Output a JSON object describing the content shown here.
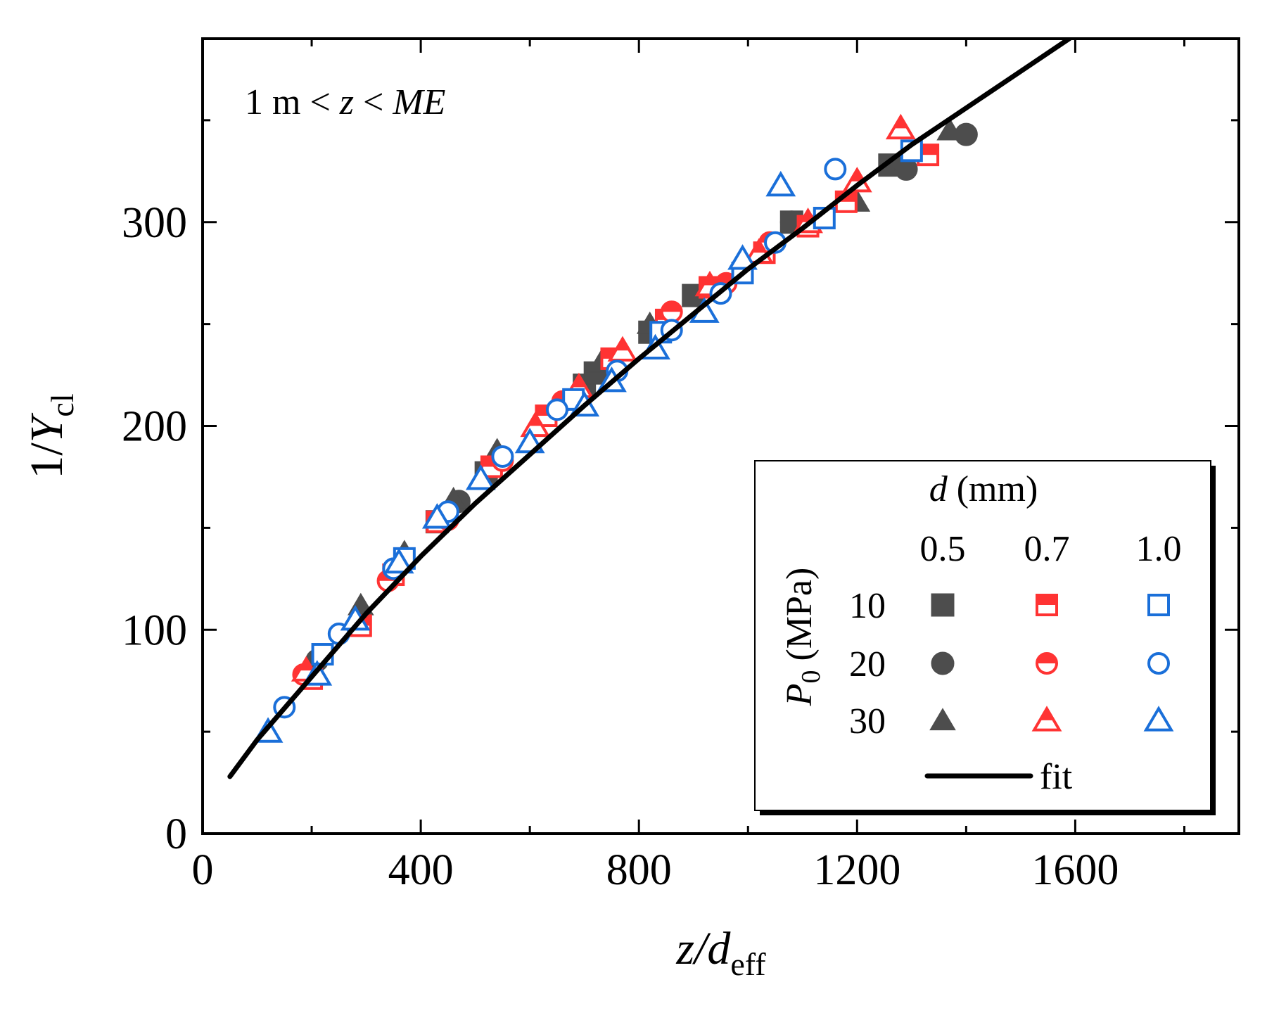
{
  "chart_data": {
    "type": "scatter",
    "xlim": [
      0,
      1900
    ],
    "ylim": [
      0,
      390
    ],
    "x_ticks": [
      0,
      400,
      800,
      1200,
      1600
    ],
    "x_tick_labels": [
      "0",
      "400",
      "800",
      "1200",
      "1600"
    ],
    "y_ticks": [
      0,
      100,
      200,
      300
    ],
    "y_tick_labels": [
      "0",
      "100",
      "200",
      "300"
    ],
    "x_minor_step": 200,
    "y_minor_step": 50,
    "xlabel": {
      "main": "z/d",
      "sub": "eff"
    },
    "ylabel": {
      "main": "1/Y",
      "sub": "cl"
    },
    "annotation": {
      "pre": "1 m < ",
      "z": "z",
      "mid": " < ",
      "me": "ME"
    },
    "grid": false,
    "legend": {
      "position": "bottom-right",
      "col_title_var": "d",
      "col_title_unit": " (mm)",
      "col_labels": [
        "0.5",
        "0.7",
        "1.0"
      ],
      "row_title_var": "P",
      "row_title_sub": "0",
      "row_title_unit": " (MPa)",
      "row_labels": [
        "10",
        "20",
        "30"
      ],
      "fit_label": "fit"
    },
    "colors": {
      "d0.5": "#4d4d4d",
      "d0.7": "#ff3333",
      "d1.0": "#1a6fd9",
      "fit": "#000000"
    },
    "series": [
      {
        "d": "0.5",
        "p": "10",
        "marker": "square",
        "x": [
          430,
          520,
          700,
          720,
          820,
          900,
          1080,
          1260
        ],
        "y": [
          153,
          177,
          220,
          226,
          246,
          264,
          300,
          328
        ]
      },
      {
        "d": "0.5",
        "p": "20",
        "marker": "circle",
        "x": [
          210,
          470,
          1080,
          1290,
          1400
        ],
        "y": [
          85,
          163,
          300,
          326,
          343
        ]
      },
      {
        "d": "0.5",
        "p": "30",
        "marker": "triangle",
        "x": [
          290,
          370,
          460,
          540,
          730,
          820,
          1200,
          1370
        ],
        "y": [
          112,
          138,
          164,
          188,
          231,
          250,
          310,
          345
        ]
      },
      {
        "d": "0.7",
        "p": "10",
        "marker": "half-square",
        "x": [
          200,
          290,
          350,
          430,
          530,
          630,
          750,
          850,
          930,
          1030,
          1110,
          1180,
          1330
        ],
        "y": [
          76,
          102,
          127,
          153,
          180,
          205,
          233,
          252,
          268,
          285,
          298,
          310,
          333
        ]
      },
      {
        "d": "0.7",
        "p": "20",
        "marker": "half-circle",
        "x": [
          185,
          340,
          450,
          550,
          660,
          860,
          960,
          1040
        ],
        "y": [
          78,
          124,
          154,
          183,
          212,
          256,
          270,
          290
        ]
      },
      {
        "d": "0.7",
        "p": "30",
        "marker": "half-triangle",
        "x": [
          190,
          610,
          690,
          770,
          930,
          1020,
          1110,
          1200,
          1280
        ],
        "y": [
          80,
          200,
          219,
          237,
          269,
          285,
          300,
          320,
          346
        ]
      },
      {
        "d": "1.0",
        "p": "10",
        "marker": "open-square",
        "x": [
          220,
          370,
          680,
          840,
          990,
          1140,
          1300
        ],
        "y": [
          88,
          135,
          213,
          246,
          275,
          302,
          335
        ]
      },
      {
        "d": "1.0",
        "p": "20",
        "marker": "open-circle",
        "x": [
          150,
          250,
          350,
          450,
          550,
          650,
          760,
          860,
          950,
          1050,
          1160
        ],
        "y": [
          62,
          98,
          130,
          158,
          185,
          208,
          227,
          247,
          265,
          290,
          326
        ]
      },
      {
        "d": "1.0",
        "p": "30",
        "marker": "open-triangle",
        "x": [
          120,
          210,
          280,
          360,
          430,
          510,
          600,
          700,
          750,
          830,
          920,
          990,
          1060
        ],
        "y": [
          50,
          78,
          105,
          133,
          155,
          174,
          192,
          210,
          222,
          238,
          256,
          282,
          318
        ]
      }
    ],
    "fit": {
      "x": [
        50,
        100,
        200,
        300,
        400,
        500,
        600,
        700,
        800,
        900,
        1000,
        1100,
        1200,
        1300,
        1400,
        1500,
        1600
      ],
      "y": [
        28,
        46,
        77,
        108,
        136,
        162,
        186,
        210,
        233,
        255,
        277,
        297,
        318,
        338,
        356,
        374,
        392
      ]
    }
  }
}
